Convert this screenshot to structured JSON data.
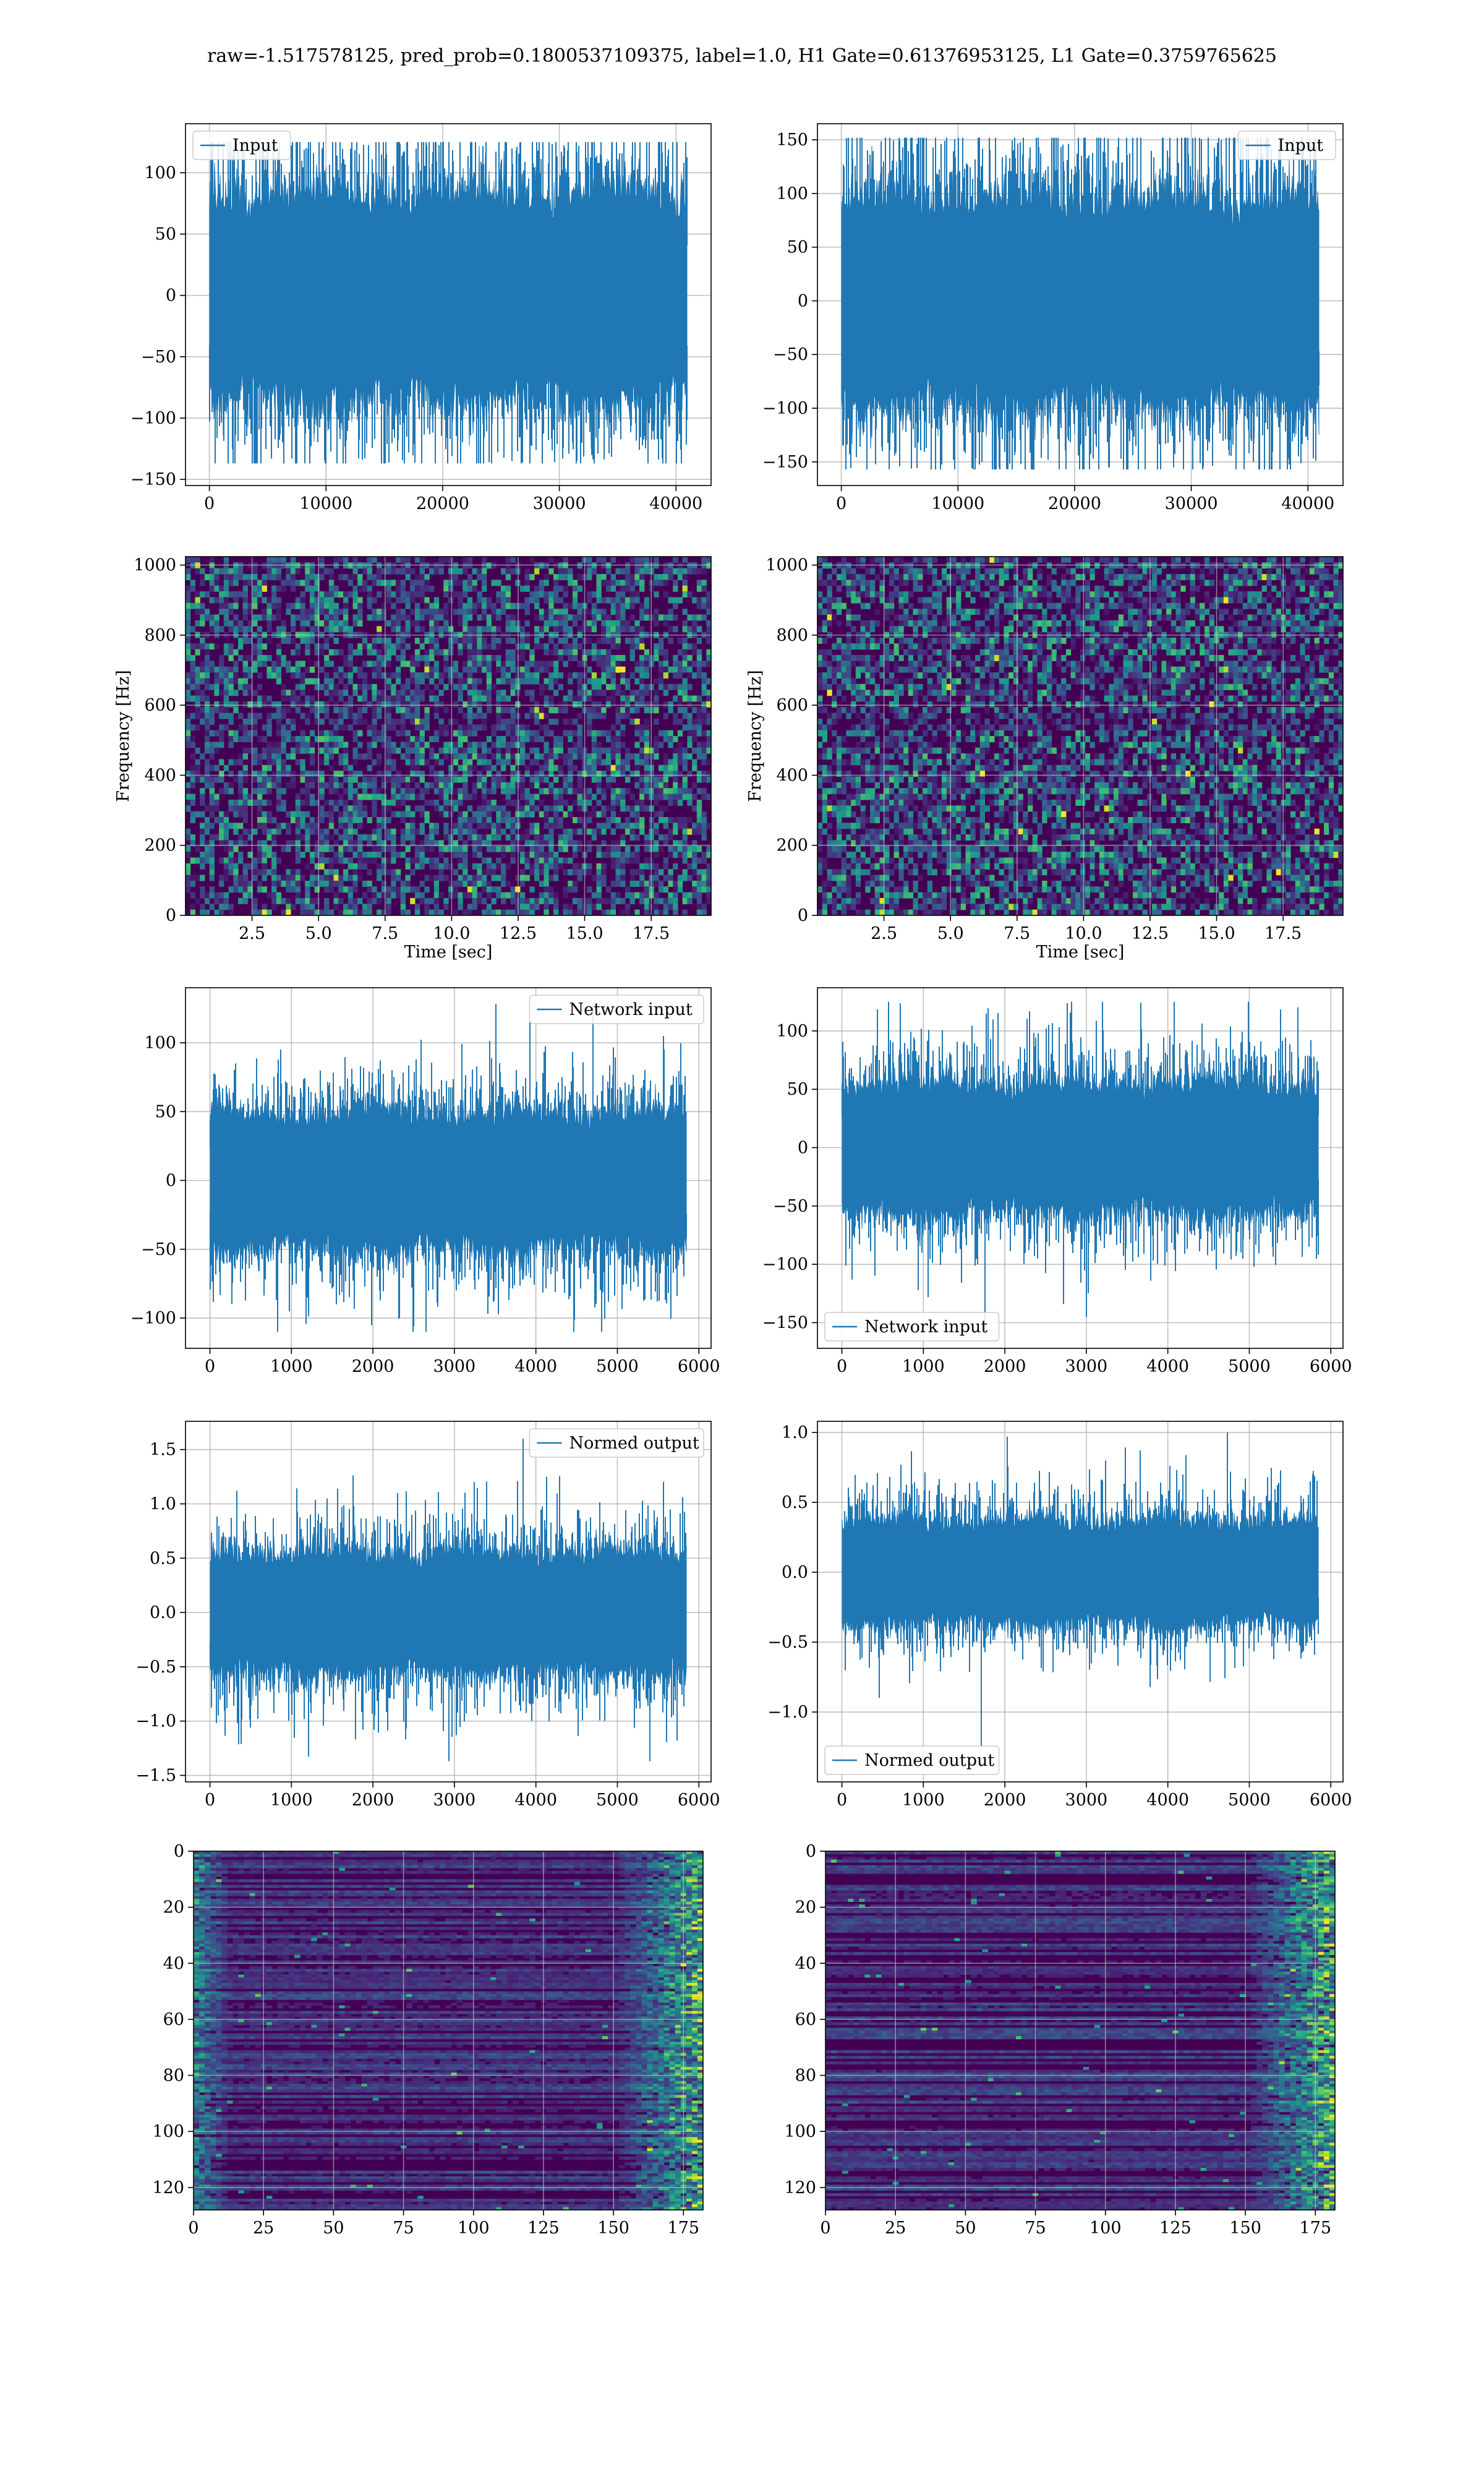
{
  "figure": {
    "suptitle": "raw=-1.517578125, pred_prob=0.1800537109375, label=1.0, H1 Gate=0.61376953125, L1 Gate=0.3759765625",
    "line_color": "#1f77b4"
  },
  "chart_data": [
    {
      "id": "input-h1",
      "type": "line",
      "legend": "Input",
      "legend_loc": "upper-left",
      "x_ticks": [
        0,
        10000,
        20000,
        30000,
        40000
      ],
      "x_tick_labels": [
        "0",
        "10000",
        "20000",
        "30000",
        "40000"
      ],
      "y_ticks": [
        -150,
        -100,
        -50,
        0,
        50,
        100
      ],
      "y_tick_labels": [
        "−150",
        "−100",
        "−50",
        "0",
        "50",
        "100"
      ],
      "xlim": [
        -2048,
        43008
      ],
      "ylim": [
        -155,
        140
      ],
      "grid": true,
      "n_points": 40960,
      "envelope": {
        "core_low": -68,
        "core_high": 68,
        "min": -137,
        "max": 125
      }
    },
    {
      "id": "input-l1",
      "type": "line",
      "legend": "Input",
      "legend_loc": "upper-right",
      "x_ticks": [
        0,
        10000,
        20000,
        30000,
        40000
      ],
      "x_tick_labels": [
        "0",
        "10000",
        "20000",
        "30000",
        "40000"
      ],
      "y_ticks": [
        -150,
        -100,
        -50,
        0,
        50,
        100,
        150
      ],
      "y_tick_labels": [
        "−150",
        "−100",
        "−50",
        "0",
        "50",
        "100",
        "150"
      ],
      "xlim": [
        -2048,
        43008
      ],
      "ylim": [
        -172,
        165
      ],
      "grid": true,
      "n_points": 40960,
      "envelope": {
        "core_low": -78,
        "core_high": 78,
        "min": -157,
        "max": 152
      }
    },
    {
      "id": "spec-h1",
      "type": "heatmap",
      "xlabel": "Time [sec]",
      "ylabel": "Frequency [Hz]",
      "x_ticks": [
        2.5,
        5.0,
        7.5,
        10.0,
        12.5,
        15.0,
        17.5
      ],
      "x_tick_labels": [
        "2.5",
        "5.0",
        "7.5",
        "10.0",
        "12.5",
        "15.0",
        "17.5"
      ],
      "y_ticks": [
        0,
        200,
        400,
        600,
        800,
        1000
      ],
      "y_tick_labels": [
        "0",
        "200",
        "400",
        "600",
        "800",
        "1000"
      ],
      "xlim": [
        0,
        19.75
      ],
      "ylim": [
        0,
        1024
      ],
      "grid": true,
      "colormap": "viridis"
    },
    {
      "id": "spec-l1",
      "type": "heatmap",
      "xlabel": "Time [sec]",
      "ylabel": "Frequency [Hz]",
      "x_ticks": [
        2.5,
        5.0,
        7.5,
        10.0,
        12.5,
        15.0,
        17.5
      ],
      "x_tick_labels": [
        "2.5",
        "5.0",
        "7.5",
        "10.0",
        "12.5",
        "15.0",
        "17.5"
      ],
      "y_ticks": [
        0,
        200,
        400,
        600,
        800,
        1000
      ],
      "y_tick_labels": [
        "0",
        "200",
        "400",
        "600",
        "800",
        "1000"
      ],
      "xlim": [
        0,
        19.75
      ],
      "ylim": [
        0,
        1024
      ],
      "grid": true,
      "colormap": "viridis"
    },
    {
      "id": "netin-h1",
      "type": "line",
      "legend": "Network input",
      "legend_loc": "upper-right",
      "x_ticks": [
        0,
        1000,
        2000,
        3000,
        4000,
        5000,
        6000
      ],
      "x_tick_labels": [
        "0",
        "1000",
        "2000",
        "3000",
        "4000",
        "5000",
        "6000"
      ],
      "y_ticks": [
        -100,
        -50,
        0,
        50,
        100
      ],
      "y_tick_labels": [
        "−100",
        "−50",
        "0",
        "50",
        "100"
      ],
      "xlim": [
        -300,
        6150
      ],
      "ylim": [
        -122,
        140
      ],
      "grid": true,
      "n_points": 5845,
      "envelope": {
        "core_low": -40,
        "core_high": 40,
        "min": -110,
        "max": 128
      }
    },
    {
      "id": "netin-l1",
      "type": "line",
      "legend": "Network input",
      "legend_loc": "lower-left",
      "x_ticks": [
        0,
        1000,
        2000,
        3000,
        4000,
        5000,
        6000
      ],
      "x_tick_labels": [
        "0",
        "1000",
        "2000",
        "3000",
        "4000",
        "5000",
        "6000"
      ],
      "y_ticks": [
        -150,
        -100,
        -50,
        0,
        50,
        100
      ],
      "y_tick_labels": [
        "−150",
        "−100",
        "−50",
        "0",
        "50",
        "100"
      ],
      "xlim": [
        -300,
        6150
      ],
      "ylim": [
        -172,
        137
      ],
      "grid": true,
      "n_points": 5845,
      "envelope": {
        "core_low": -45,
        "core_high": 45,
        "min": -158,
        "max": 125
      }
    },
    {
      "id": "norm-h1",
      "type": "line",
      "legend": "Normed output",
      "legend_loc": "upper-right",
      "x_ticks": [
        0,
        1000,
        2000,
        3000,
        4000,
        5000,
        6000
      ],
      "x_tick_labels": [
        "0",
        "1000",
        "2000",
        "3000",
        "4000",
        "5000",
        "6000"
      ],
      "y_ticks": [
        -1.5,
        -1.0,
        -0.5,
        0.0,
        0.5,
        1.0,
        1.5
      ],
      "y_tick_labels": [
        "−1.5",
        "−1.0",
        "−0.5",
        "0.0",
        "0.5",
        "1.0",
        "1.5"
      ],
      "xlim": [
        -300,
        6150
      ],
      "ylim": [
        -1.56,
        1.76
      ],
      "grid": true,
      "n_points": 5845,
      "envelope": {
        "core_low": -0.45,
        "core_high": 0.45,
        "min": -1.37,
        "max": 1.6
      }
    },
    {
      "id": "norm-l1",
      "type": "line",
      "legend": "Normed output",
      "legend_loc": "lower-left",
      "x_ticks": [
        0,
        1000,
        2000,
        3000,
        4000,
        5000,
        6000
      ],
      "x_tick_labels": [
        "0",
        "1000",
        "2000",
        "3000",
        "4000",
        "5000",
        "6000"
      ],
      "y_ticks": [
        -1.0,
        -0.5,
        0.0,
        0.5,
        1.0
      ],
      "y_tick_labels": [
        "−1.0",
        "−0.5",
        "0.0",
        "0.5",
        "1.0"
      ],
      "xlim": [
        -300,
        6150
      ],
      "ylim": [
        -1.5,
        1.08
      ],
      "grid": true,
      "n_points": 5845,
      "envelope": {
        "core_low": -0.3,
        "core_high": 0.3,
        "min": -1.25,
        "max": 1.0
      }
    },
    {
      "id": "feat-h1",
      "type": "heatmap",
      "origin": "upper",
      "x_ticks": [
        0,
        25,
        50,
        75,
        100,
        125,
        150,
        175
      ],
      "x_tick_labels": [
        "0",
        "25",
        "50",
        "75",
        "100",
        "125",
        "150",
        "175"
      ],
      "y_ticks": [
        0,
        20,
        40,
        60,
        80,
        100,
        120
      ],
      "y_tick_labels": [
        "0",
        "20",
        "40",
        "60",
        "80",
        "100",
        "120"
      ],
      "xlim": [
        0,
        182
      ],
      "ylim": [
        128,
        0
      ],
      "grid": true,
      "colormap": "viridis"
    },
    {
      "id": "feat-l1",
      "type": "heatmap",
      "origin": "upper",
      "x_ticks": [
        0,
        25,
        50,
        75,
        100,
        125,
        150,
        175
      ],
      "x_tick_labels": [
        "0",
        "25",
        "50",
        "75",
        "100",
        "125",
        "150",
        "175"
      ],
      "y_ticks": [
        0,
        20,
        40,
        60,
        80,
        100,
        120
      ],
      "y_tick_labels": [
        "0",
        "20",
        "40",
        "60",
        "80",
        "100",
        "120"
      ],
      "xlim": [
        0,
        182
      ],
      "ylim": [
        128,
        0
      ],
      "grid": true,
      "colormap": "viridis"
    }
  ]
}
